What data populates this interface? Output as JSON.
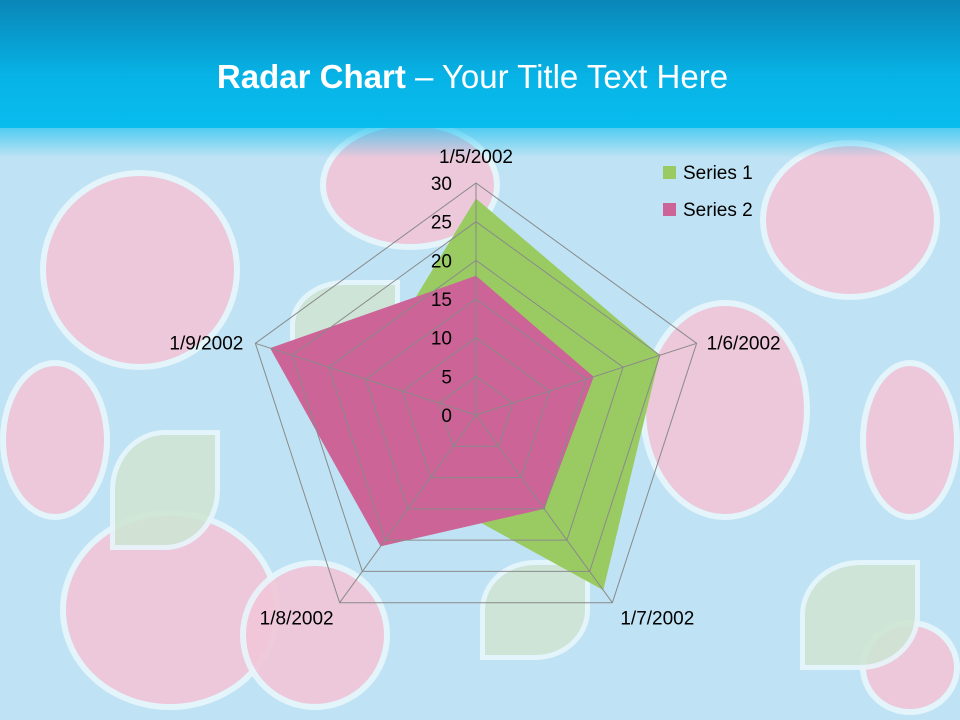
{
  "title": {
    "bold": "Radar Chart",
    "rest": " – Your Title Text Here"
  },
  "chart_data": {
    "type": "radar",
    "categories": [
      "1/5/2002",
      "1/6/2002",
      "1/7/2002",
      "1/8/2002",
      "1/9/2002"
    ],
    "series": [
      {
        "name": "Series 1",
        "values": [
          28,
          25,
          28,
          12,
          15
        ],
        "color": "#9acb63"
      },
      {
        "name": "Series 2",
        "values": [
          18,
          16,
          15,
          21,
          28
        ],
        "color": "#cc6497"
      }
    ],
    "rlim": [
      0,
      30
    ],
    "ticks": [
      "0",
      "5",
      "10",
      "15",
      "20",
      "25",
      "30"
    ],
    "legend": "top-right",
    "grid": true
  }
}
